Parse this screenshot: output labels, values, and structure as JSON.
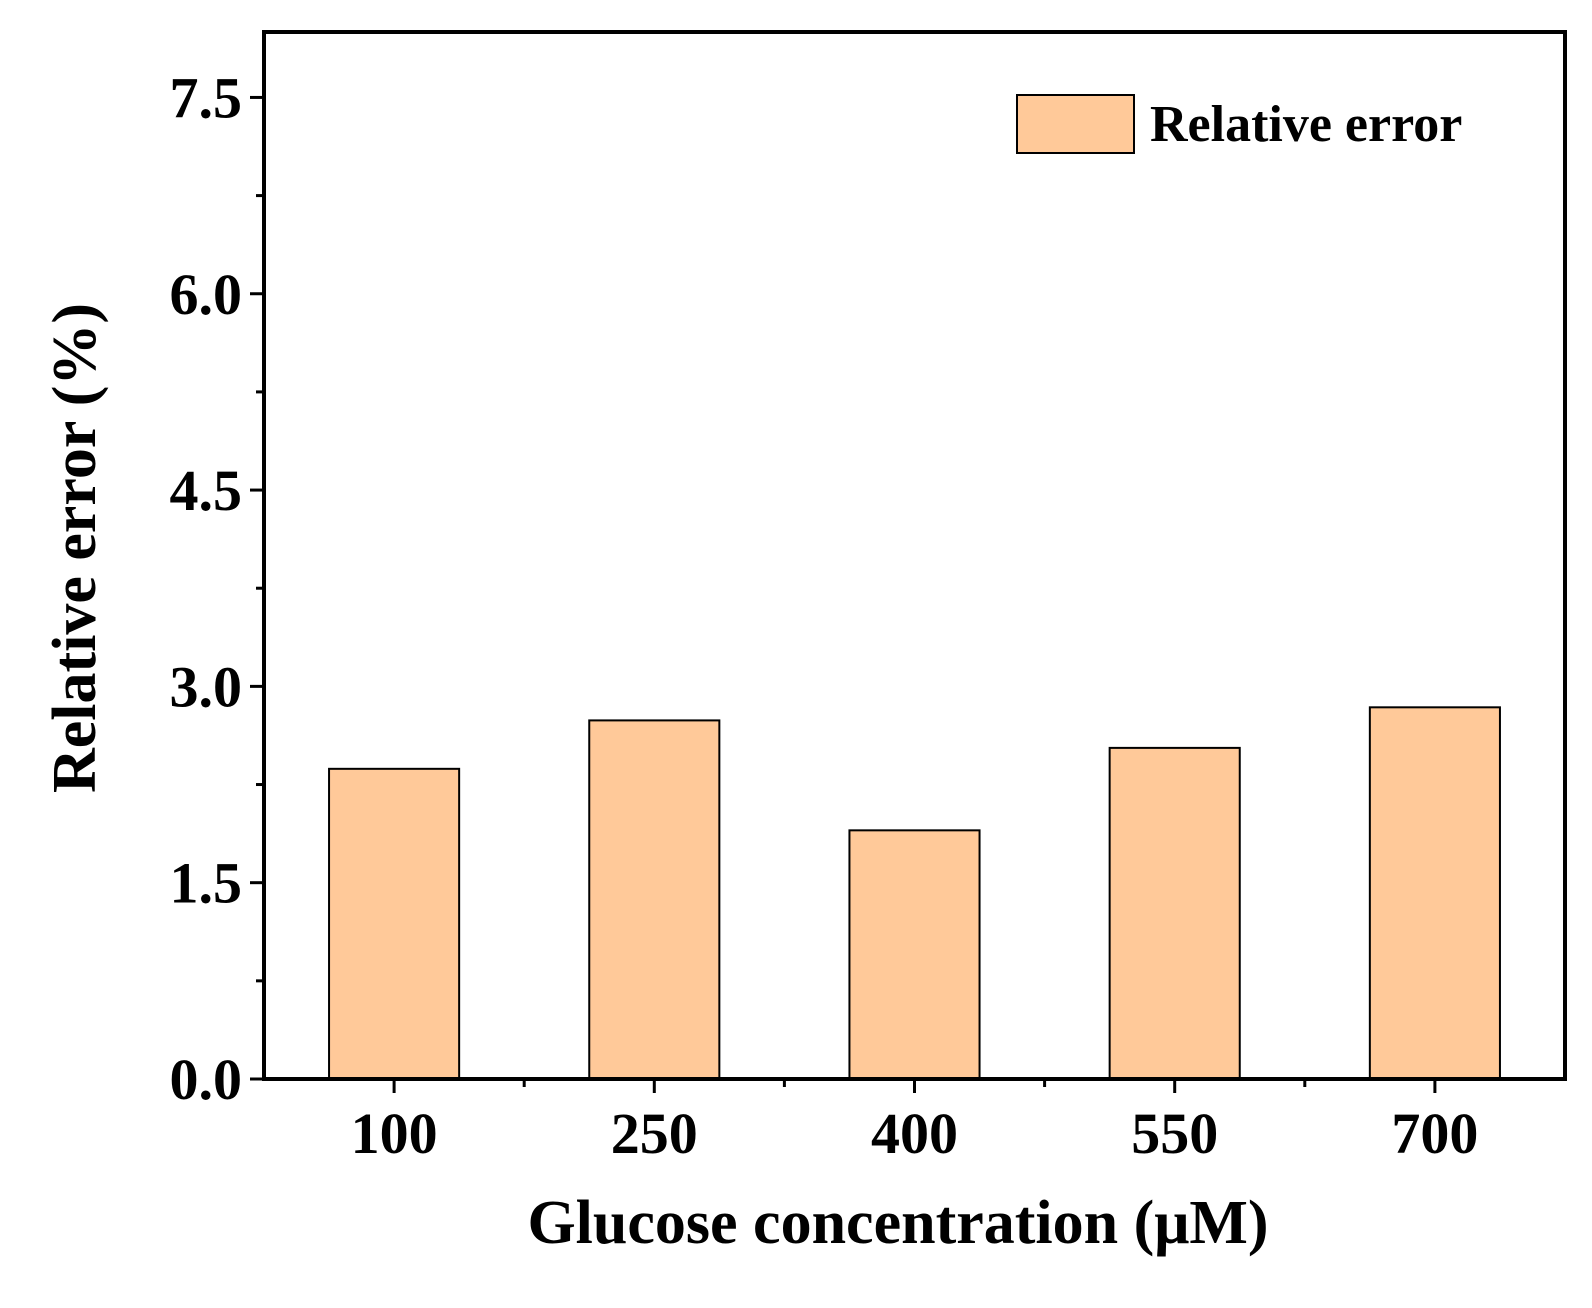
{
  "chart_data": {
    "type": "bar",
    "title": "",
    "xlabel": "Glucose concentration (μM)",
    "ylabel": "Relative error (%)",
    "categories": [
      "100",
      "250",
      "400",
      "550",
      "700"
    ],
    "series": [
      {
        "name": "Relative error",
        "values": [
          2.37,
          2.74,
          1.9,
          2.53,
          2.84
        ]
      }
    ],
    "ylim": [
      0,
      8
    ],
    "yticks": [
      "0.0",
      "1.5",
      "3.0",
      "4.5",
      "6.0",
      "7.5"
    ],
    "ytick_values": [
      0,
      1.5,
      3.0,
      4.5,
      6.0,
      7.5
    ],
    "y_minor_ticks": [
      0.75,
      2.25,
      3.75,
      5.25,
      6.75
    ],
    "grid": false,
    "legend": "top-right",
    "bar_color": "#FFC999",
    "bar_edge_color": "#000000"
  }
}
